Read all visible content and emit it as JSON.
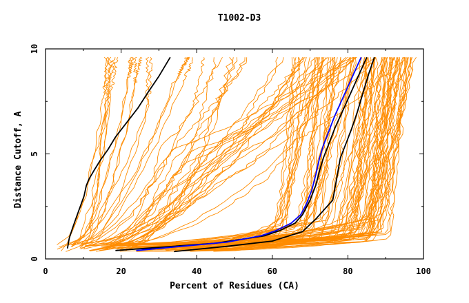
{
  "chart_data": {
    "type": "line",
    "title": "T1002-D3",
    "xlabel": "Percent of Residues (CA)",
    "ylabel": "Distance Cutoff, A",
    "xlim": [
      0,
      100
    ],
    "ylim": [
      0,
      10
    ],
    "x_ticks": [
      "0",
      "20",
      "40",
      "60",
      "80",
      "100"
    ],
    "y_ticks": [
      "0",
      "5",
      "10"
    ],
    "grid": false,
    "colors": {
      "background_models": "#ff8c00",
      "reference": "#000000",
      "highlight": "#0000ff"
    },
    "bundles": [
      {
        "name": "steep-low-coverage",
        "count": 16,
        "start_x": [
          3,
          13
        ],
        "end_x": [
          16,
          42
        ],
        "knee_y": [
          7.0,
          9.5
        ],
        "knee_x": [
          0.85,
          1.0
        ],
        "wiggle": 1.0
      },
      {
        "name": "diagonal-mid",
        "count": 28,
        "start_x": [
          5,
          25
        ],
        "end_x": [
          45,
          96
        ],
        "knee_y": [
          3.0,
          6.0
        ],
        "knee_x": [
          0.3,
          0.7
        ],
        "wiggle": 1.5
      },
      {
        "name": "tail-elbow",
        "count": 48,
        "start_x": [
          10,
          50
        ],
        "end_x": [
          65,
          98
        ],
        "knee_y": [
          0.9,
          2.0
        ],
        "knee_x": [
          0.75,
          0.92
        ],
        "wiggle": 1.0
      },
      {
        "name": "dense-right-cluster",
        "count": 34,
        "start_x": [
          22,
          42
        ],
        "end_x": [
          84,
          98
        ],
        "knee_y": [
          0.8,
          1.3
        ],
        "knee_x": [
          0.82,
          0.94
        ],
        "wiggle": 1.2
      }
    ],
    "series": [
      {
        "name": "reference-left",
        "color": "#000000",
        "x": [
          5.8,
          6.3,
          7.2,
          8.2,
          9.2,
          10.2,
          10.8,
          11.5,
          12.8,
          14.5,
          16.5,
          18.5,
          21.5,
          24.5,
          27.0,
          30.0,
          33.0
        ],
        "y": [
          0.5,
          1.0,
          1.5,
          2.0,
          2.5,
          3.0,
          3.5,
          3.8,
          4.2,
          4.7,
          5.2,
          5.8,
          6.5,
          7.2,
          7.9,
          8.7,
          9.6
        ]
      },
      {
        "name": "reference-mid",
        "color": "#000000",
        "x": [
          18.5,
          30,
          45,
          58,
          62,
          66,
          68,
          70,
          71.5,
          72.5,
          73.5,
          75,
          76.5,
          78,
          79.5,
          81,
          82.5,
          84,
          85
        ],
        "y": [
          0.4,
          0.55,
          0.75,
          1.1,
          1.35,
          1.7,
          2.1,
          2.8,
          3.5,
          4.2,
          4.8,
          5.5,
          6.2,
          6.8,
          7.4,
          8.0,
          8.6,
          9.2,
          9.6
        ]
      },
      {
        "name": "reference-right",
        "color": "#000000",
        "x": [
          34,
          48,
          60,
          68,
          71.5,
          74,
          76,
          77,
          78,
          79.5,
          81,
          82.5,
          84,
          85.5,
          87
        ],
        "y": [
          0.35,
          0.6,
          0.85,
          1.3,
          1.9,
          2.4,
          2.8,
          3.8,
          4.8,
          5.5,
          6.2,
          7.0,
          7.9,
          8.8,
          9.6
        ]
      },
      {
        "name": "highlight-model",
        "color": "#0000ff",
        "x": [
          24,
          36,
          48,
          57,
          61,
          65,
          67.5,
          69,
          70.5,
          71.5,
          72.5,
          73.5,
          75,
          76.5,
          78,
          79.5,
          81,
          82.5,
          83.5
        ],
        "y": [
          0.4,
          0.6,
          0.8,
          1.1,
          1.35,
          1.7,
          2.1,
          2.6,
          3.3,
          4.0,
          4.8,
          5.4,
          6.1,
          6.8,
          7.4,
          8.0,
          8.6,
          9.2,
          9.6
        ]
      }
    ]
  }
}
